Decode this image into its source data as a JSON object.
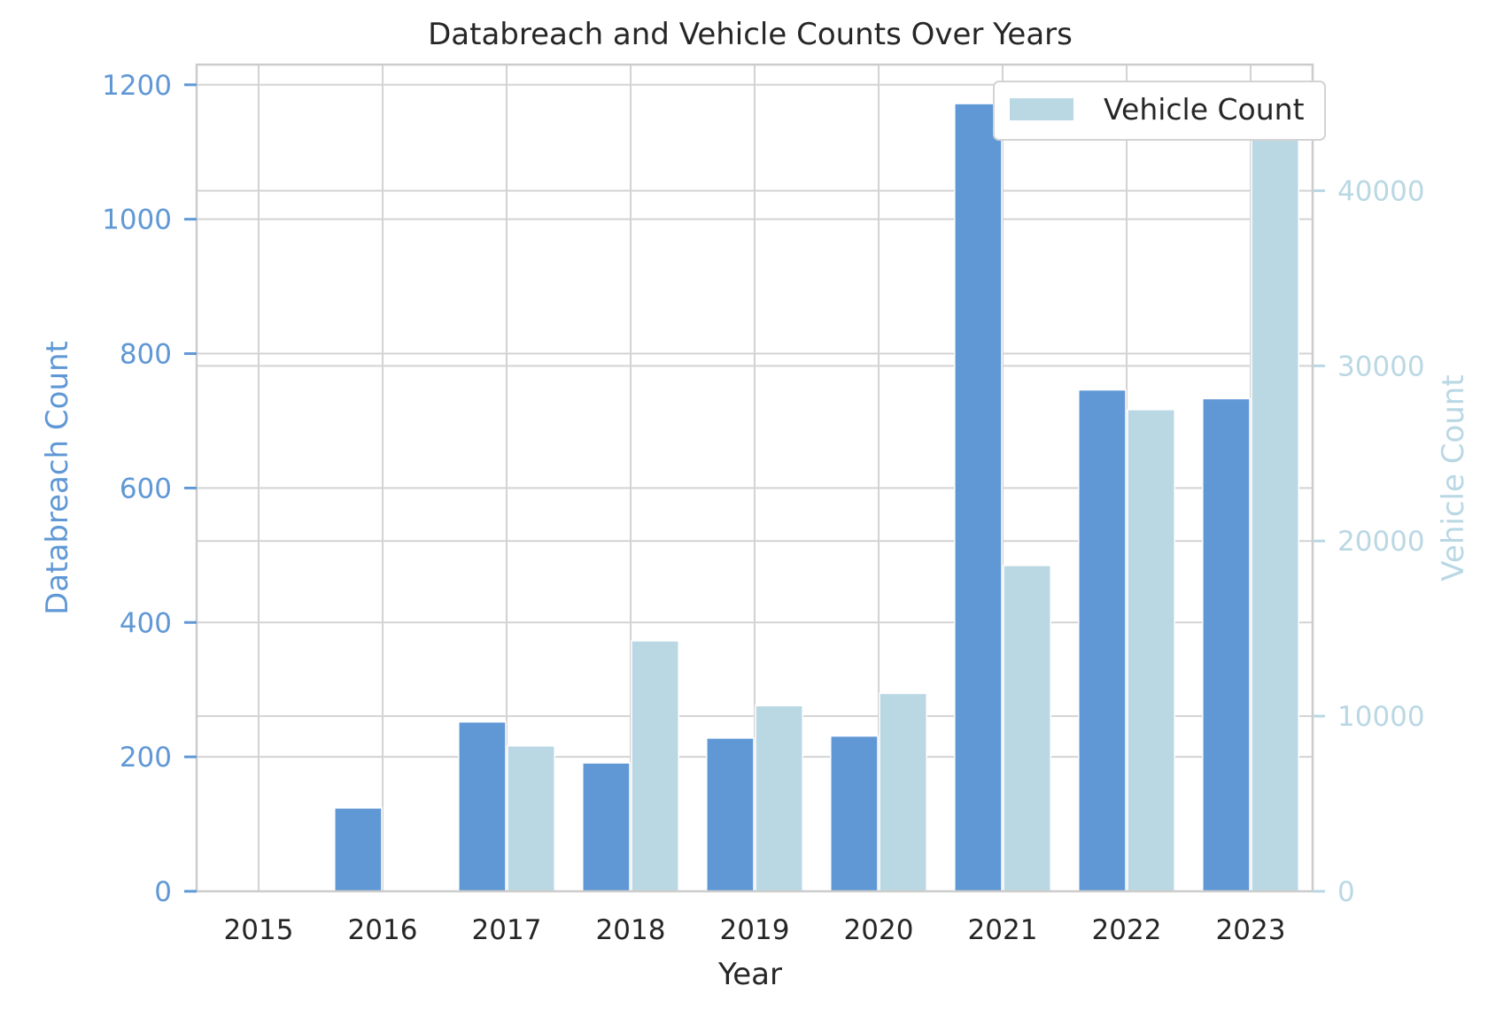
{
  "chart_data": {
    "type": "bar",
    "title": "Databreach and Vehicle Counts Over Years",
    "xlabel": "Year",
    "ylabel_left": "Databreach Count",
    "ylabel_right": "Vehicle Count",
    "categories": [
      "2015",
      "2016",
      "2017",
      "2018",
      "2019",
      "2020",
      "2021",
      "2022",
      "2023"
    ],
    "series": [
      {
        "name": "Databreach Count",
        "axis": "left",
        "color": "#6098d5",
        "values": [
          0,
          124,
          252,
          191,
          228,
          231,
          1172,
          746,
          733
        ]
      },
      {
        "name": "Vehicle Count",
        "axis": "right",
        "color": "#bad8e4",
        "values": [
          0,
          0,
          8300,
          14300,
          10600,
          11300,
          18600,
          27500,
          45000
        ]
      }
    ],
    "ylim_left": [
      0,
      1230
    ],
    "ylim_right": [
      0,
      47200
    ],
    "yticks_left": [
      0,
      200,
      400,
      600,
      800,
      1000,
      1200
    ],
    "yticks_right": [
      0,
      10000,
      20000,
      30000,
      40000
    ],
    "legend": {
      "position": "top-right",
      "entries": [
        "Vehicle Count"
      ]
    },
    "grid": true,
    "colors": {
      "left_axis": "#6098d5",
      "right_axis": "#bad8e4",
      "text": "#262626",
      "grid": "#d3d3d3",
      "spine": "#cccccc"
    }
  }
}
